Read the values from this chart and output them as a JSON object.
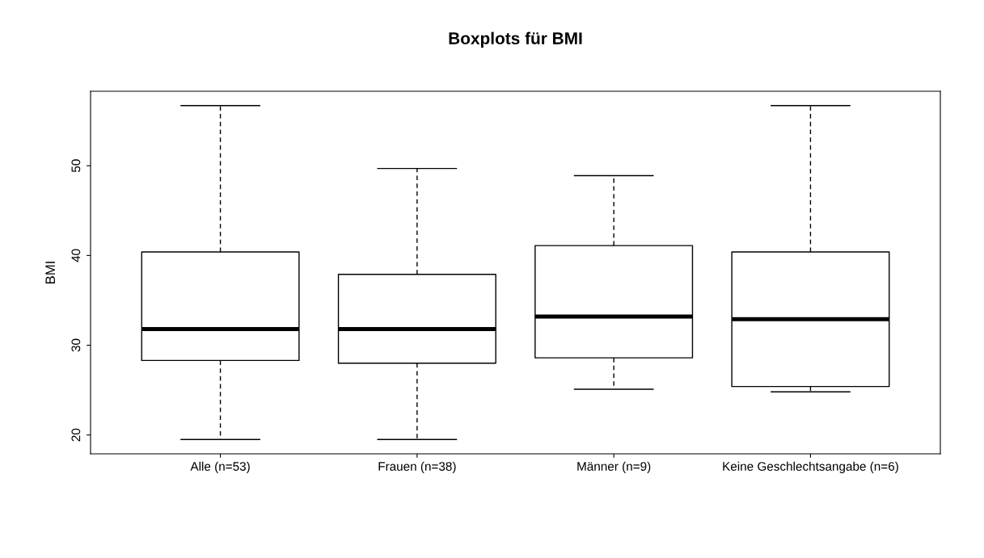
{
  "chart_data": {
    "type": "box",
    "title": "Boxplots für BMI",
    "ylabel": "BMI",
    "categories": [
      "Alle (n=53)",
      "Frauen (n=38)",
      "Männer (n=9)",
      "Keine Geschlechtsangabe (n=6)"
    ],
    "boxes": [
      {
        "low": 19.5,
        "q1": 28.3,
        "median": 31.8,
        "q3": 40.4,
        "high": 56.7
      },
      {
        "low": 19.5,
        "q1": 28.0,
        "median": 31.8,
        "q3": 37.9,
        "high": 49.7
      },
      {
        "low": 25.1,
        "q1": 28.6,
        "median": 33.2,
        "q3": 41.1,
        "high": 48.9
      },
      {
        "low": 24.8,
        "q1": 25.4,
        "median": 32.9,
        "q3": 40.4,
        "high": 56.7
      }
    ],
    "ylim": [
      17.9,
      58.3
    ],
    "yticks": [
      20,
      30,
      40,
      50
    ],
    "grid": false
  }
}
